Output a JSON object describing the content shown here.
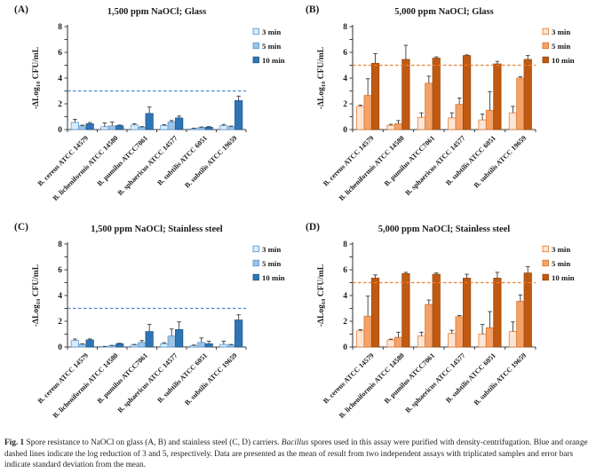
{
  "figure": {
    "caption": {
      "parts": [
        {
          "text": "Fig. 1",
          "style": "bold"
        },
        {
          "text": " Spore resistance to NaOCl on glass (A, B) and stainless steel (C, D) carriers. ",
          "style": "normal"
        },
        {
          "text": "Bacillus",
          "style": "italic"
        },
        {
          "text": " spores used in this assay were purified with density-centrifugation. Blue and orange dashed lines indicate the log reduction of 3 and 5, respectively. Data are presented as the mean of result from two independent assays with triplicated samples and error bars indicate standard deviation from the mean.",
          "style": "normal"
        }
      ]
    }
  },
  "chart_data": [
    {
      "type": "bar",
      "panel_label": "(A)",
      "title": "1,500 ppm NaOCl; Glass",
      "ylabel": "-ΔLog10 CFU/mL",
      "ylabel_parts": {
        "pre": "-ΔLog",
        "sub": "10",
        "post": " CFU/mL"
      },
      "ylim": [
        0,
        8
      ],
      "ytick_step": 2,
      "grid": false,
      "legend_position": "right",
      "categories": [
        "B. cereus ATCC 14579",
        "B. licheniformis ATCC 14580",
        "B. pumilus ATCC7061",
        "B. sphaericus ATCC 14577",
        "B. subtilis ATCC 6051",
        "B. subtilis ATCC 19659"
      ],
      "dashed_line": {
        "y": 3,
        "color": "#4a86c8"
      },
      "series": [
        {
          "name": "3 min",
          "fill": "#dcebf7",
          "stroke": "#5b9bd5",
          "values": [
            0.55,
            0.22,
            0.35,
            0.3,
            0.07,
            0.3
          ],
          "errors": [
            0.25,
            0.3,
            0.1,
            0.08,
            0.04,
            0.1
          ]
        },
        {
          "name": "5 min",
          "fill": "#9dc3e6",
          "stroke": "#5b9bd5",
          "values": [
            0.28,
            0.28,
            0.18,
            0.6,
            0.15,
            0.22
          ],
          "errors": [
            0.06,
            0.3,
            0.05,
            0.1,
            0.05,
            0.05
          ]
        },
        {
          "name": "10 min",
          "fill": "#2e75b6",
          "stroke": "#24598c",
          "values": [
            0.45,
            0.3,
            1.25,
            0.9,
            0.18,
            2.25
          ],
          "errors": [
            0.1,
            0.05,
            0.5,
            0.15,
            0.05,
            0.35
          ]
        }
      ]
    },
    {
      "type": "bar",
      "panel_label": "(B)",
      "title": "5,000 ppm NaOCl; Glass",
      "ylabel": "-ΔLog10 CFU/mL",
      "ylabel_parts": {
        "pre": "-ΔLog",
        "sub": "10",
        "post": " CFU/mL"
      },
      "ylim": [
        0,
        8
      ],
      "ytick_step": 2,
      "grid": false,
      "legend_position": "right",
      "categories": [
        "B. cereus ATCC 14579",
        "B. licheniformis ATCC 14580",
        "B. pumilus ATCC7061",
        "B. sphaericus ATCC 14577",
        "B. subtilis ATCC 6051",
        "B. subtilis ATCC 19659"
      ],
      "dashed_line": {
        "y": 5,
        "color": "#ed7d31"
      },
      "series": [
        {
          "name": "3 min",
          "fill": "#fbe5d6",
          "stroke": "#ed7d31",
          "values": [
            1.8,
            0.33,
            0.95,
            0.9,
            0.75,
            1.3
          ],
          "errors": [
            0.1,
            0.08,
            0.35,
            0.4,
            0.45,
            0.5
          ]
        },
        {
          "name": "5 min",
          "fill": "#f4a26a",
          "stroke": "#e0762a",
          "values": [
            2.65,
            0.45,
            3.6,
            1.95,
            1.5,
            4.0
          ],
          "errors": [
            1.3,
            0.25,
            0.55,
            0.5,
            1.45,
            0.1
          ]
        },
        {
          "name": "10 min",
          "fill": "#c05a11",
          "stroke": "#9a4a10",
          "values": [
            5.15,
            5.45,
            5.55,
            5.75,
            5.1,
            5.45
          ],
          "errors": [
            0.75,
            1.1,
            0.1,
            0.05,
            0.2,
            0.3
          ]
        }
      ]
    },
    {
      "type": "bar",
      "panel_label": "(C)",
      "title": "1,500 ppm NaOCl; Stainless steel",
      "ylabel": "-ΔLog10 CFU/mL",
      "ylabel_parts": {
        "pre": "-ΔLog",
        "sub": "10",
        "post": " CFU/mL"
      },
      "ylim": [
        0,
        8
      ],
      "ytick_step": 2,
      "grid": false,
      "legend_position": "right",
      "categories": [
        "B. cereus ATCC 14579",
        "B. licheniformis ATCC 14580",
        "B. pumilus ATCC7061",
        "B. sphaericus ATCC 14577",
        "B. subtilis ATCC 6051",
        "B. subtilis ATCC 19659"
      ],
      "dashed_line": {
        "y": 3,
        "color": "#4a86c8"
      },
      "series": [
        {
          "name": "3 min",
          "fill": "#dcebf7",
          "stroke": "#5b9bd5",
          "values": [
            0.5,
            0.03,
            0.15,
            0.25,
            0.1,
            0.2
          ],
          "errors": [
            0.12,
            0.02,
            0.05,
            0.08,
            0.05,
            0.25
          ]
        },
        {
          "name": "5 min",
          "fill": "#9dc3e6",
          "stroke": "#5b9bd5",
          "values": [
            0.2,
            0.1,
            0.35,
            0.85,
            0.35,
            0.15
          ],
          "errors": [
            0.05,
            0.03,
            0.15,
            0.55,
            0.35,
            0.05
          ]
        },
        {
          "name": "10 min",
          "fill": "#2e75b6",
          "stroke": "#24598c",
          "values": [
            0.55,
            0.25,
            1.2,
            1.35,
            0.25,
            2.1
          ],
          "errors": [
            0.08,
            0.04,
            0.55,
            0.6,
            0.2,
            0.4
          ]
        }
      ]
    },
    {
      "type": "bar",
      "panel_label": "(D)",
      "title": "5,000 ppm NaOCl; Stainless steel",
      "ylabel": "-ΔLog10 CFU/mL",
      "ylabel_parts": {
        "pre": "-ΔLog",
        "sub": "10",
        "post": " CFU/mL"
      },
      "ylim": [
        0,
        8
      ],
      "ytick_step": 2,
      "grid": false,
      "legend_position": "right",
      "categories": [
        "B. cereus ATCC 14579",
        "B. licheniformis ATCC 14580",
        "B. pumilus ATCC7061",
        "B. sphaericus ATCC 14577",
        "B. subtilis ATCC 6051",
        "B. subtilis ATCC 19659"
      ],
      "dashed_line": {
        "y": 5,
        "color": "#ed7d31"
      },
      "series": [
        {
          "name": "3 min",
          "fill": "#fbe5d6",
          "stroke": "#ed7d31",
          "values": [
            1.25,
            0.55,
            0.85,
            1.05,
            1.0,
            1.2
          ],
          "errors": [
            0.1,
            0.06,
            0.3,
            0.25,
            0.75,
            0.75
          ]
        },
        {
          "name": "5 min",
          "fill": "#f4a26a",
          "stroke": "#e0762a",
          "values": [
            2.4,
            0.75,
            3.3,
            2.35,
            1.5,
            3.55
          ],
          "errors": [
            1.55,
            0.4,
            0.35,
            0.1,
            1.25,
            0.5
          ]
        },
        {
          "name": "10 min",
          "fill": "#c05a11",
          "stroke": "#9a4a10",
          "values": [
            5.35,
            5.7,
            5.65,
            5.35,
            5.35,
            5.75
          ],
          "errors": [
            0.25,
            0.1,
            0.1,
            0.3,
            0.45,
            0.5
          ]
        }
      ]
    }
  ]
}
